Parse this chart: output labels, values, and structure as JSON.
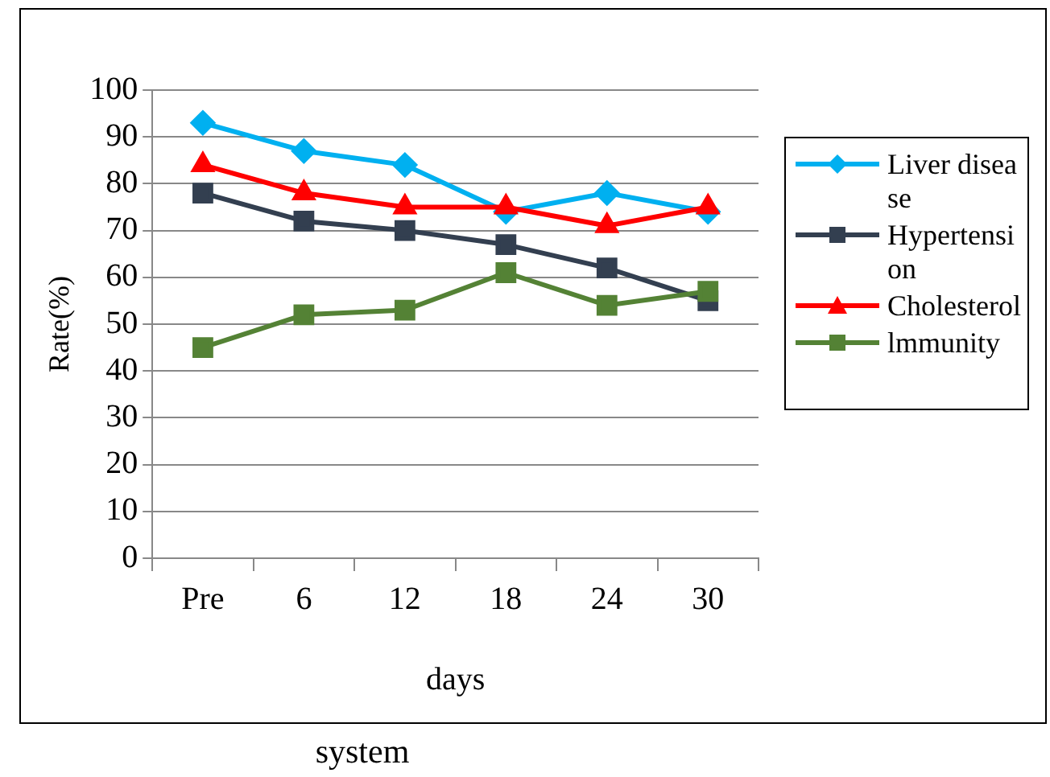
{
  "chart_data": {
    "type": "line",
    "xlabel": "days",
    "ylabel": "Rate(%)",
    "categories": [
      "Pre",
      "6",
      "12",
      "18",
      "24",
      "30"
    ],
    "series": [
      {
        "name": "Liver disease",
        "color": "#00b0f0",
        "marker": "diamond",
        "values": [
          93,
          87,
          84,
          74,
          78,
          74
        ]
      },
      {
        "name": "Hypertension",
        "color": "#333f50",
        "marker": "square",
        "values": [
          78,
          72,
          70,
          67,
          62,
          55
        ]
      },
      {
        "name": "Cholesterol",
        "color": "#ff0000",
        "marker": "triangle",
        "values": [
          84,
          78,
          75,
          75,
          71,
          75
        ]
      },
      {
        "name": "lmmunity",
        "color": "#548235",
        "marker": "square",
        "values": [
          45,
          52,
          53,
          61,
          54,
          57
        ]
      }
    ],
    "ylim": [
      0,
      100
    ],
    "yticks": [
      0,
      10,
      20,
      30,
      40,
      50,
      60,
      70,
      80,
      90,
      100
    ],
    "grid": "y",
    "legend": "right",
    "line_style": "solid",
    "annotations": [
      "system"
    ]
  }
}
